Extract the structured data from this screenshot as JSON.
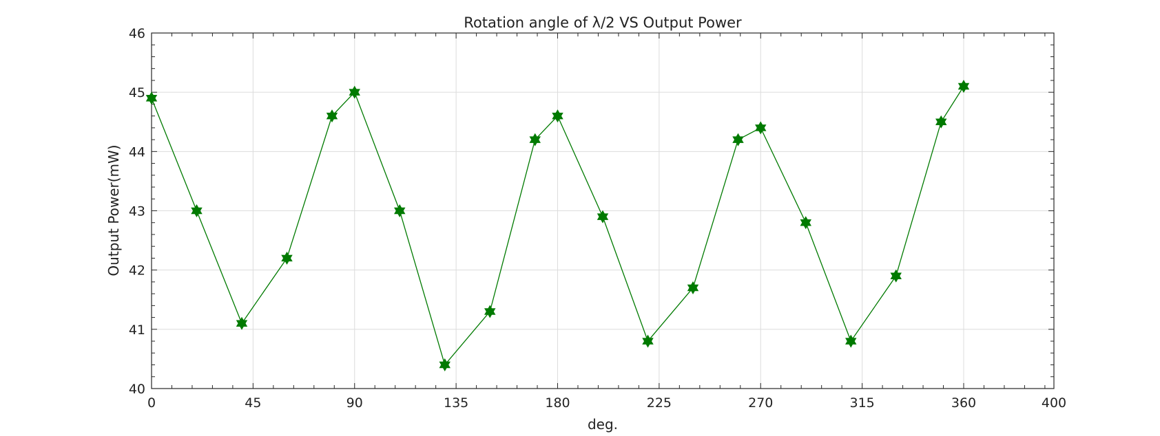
{
  "chart_data": {
    "type": "line",
    "title": "Rotation angle of λ/2 VS Output Power",
    "xlabel": "deg.",
    "ylabel": "Output Power(mW)",
    "xlim": [
      0,
      400
    ],
    "ylim": [
      40,
      46
    ],
    "xticks": [
      0,
      45,
      90,
      135,
      180,
      225,
      270,
      315,
      360,
      400
    ],
    "yticks": [
      40,
      41,
      42,
      43,
      44,
      45,
      46
    ],
    "grid": true,
    "minor_ticks": true,
    "legend": "none",
    "marker": "hexagram",
    "color": "#007a00",
    "series": [
      {
        "x": [
          0,
          20,
          40,
          60,
          80,
          90,
          110,
          130,
          150,
          170,
          180,
          200,
          220,
          240,
          260,
          270,
          290,
          310,
          330,
          350,
          360
        ],
        "values": [
          44.9,
          43.0,
          41.1,
          42.2,
          44.6,
          45.0,
          43.0,
          40.4,
          41.3,
          44.2,
          44.6,
          42.9,
          40.8,
          41.7,
          44.2,
          44.4,
          42.8,
          40.8,
          41.9,
          44.5,
          45.1
        ]
      }
    ]
  }
}
